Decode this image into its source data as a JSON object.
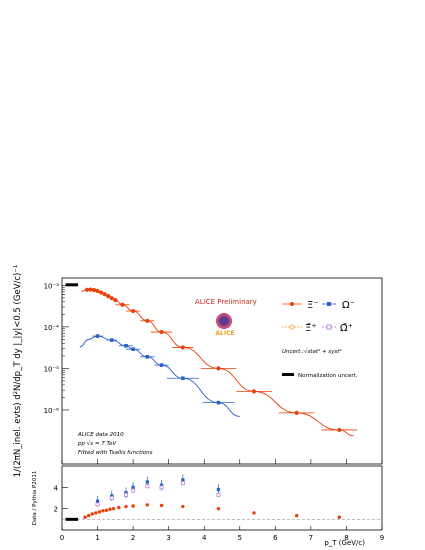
{
  "chart_data": [
    {
      "type": "scatter",
      "panel": "spectra",
      "y_scale": "log",
      "xlim": [
        0,
        9
      ],
      "ylim": [
        5e-08,
        0.0015
      ],
      "ylabel": "1/(2πN_inel. evts) d²N/dp_T dy |_|y|<0.5 (GeV/c)⁻¹",
      "y_tick_labels": [
        "10⁻³",
        "10⁻⁴",
        "10⁻⁵",
        "10⁻⁶"
      ],
      "legend": {
        "title": "ALICE Preliminary",
        "entries": [
          "Ξ⁻",
          "Ω⁻",
          "Ξ̄⁺",
          "Ω̄⁺"
        ],
        "uncert_note": "Uncert.:√stat² + syst²",
        "norm_note": "Normalization uncert."
      },
      "annotation": [
        "ALICE data 2010",
        "pp √s = 7 TeV",
        "Fitted with Tsallis functions"
      ],
      "logo_text": "ALICE",
      "series": [
        {
          "name": "Ξ⁻",
          "color": "#e8410a",
          "x": [
            0.7,
            0.8,
            0.9,
            1.0,
            1.1,
            1.2,
            1.3,
            1.4,
            1.5,
            1.7,
            2.0,
            2.4,
            2.8,
            3.4,
            4.4,
            5.4,
            6.6,
            7.8
          ],
          "y": [
            0.00078,
            0.00079,
            0.00077,
            0.00073,
            0.00067,
            0.00061,
            0.00055,
            0.00049,
            0.00044,
            0.00034,
            0.00024,
            0.00014,
            7.5e-05,
            3.2e-05,
            1e-05,
            2.8e-06,
            8.5e-07,
            3.3e-07
          ]
        },
        {
          "name": "Ω⁻",
          "color": "#2a62c8",
          "x": [
            1.0,
            1.4,
            1.8,
            2.0,
            2.4,
            2.8,
            3.4,
            4.4
          ],
          "y": [
            6e-05,
            4.8e-05,
            3.5e-05,
            2.9e-05,
            1.9e-05,
            1.2e-05,
            5.8e-06,
            1.5e-06
          ]
        }
      ]
    },
    {
      "type": "scatter",
      "panel": "ratio",
      "xlim": [
        0,
        9
      ],
      "ylim": [
        0,
        6
      ],
      "xlabel": "p_T (GeV/c)",
      "ylabel": "Data / Pythia P2011",
      "x_tick_labels": [
        "0",
        "1",
        "2",
        "3",
        "4",
        "5",
        "6",
        "7",
        "8",
        "9"
      ],
      "y_tick_labels": [
        "2",
        "4"
      ],
      "series": [
        {
          "name": "Ξ⁻",
          "x": [
            0.65,
            0.75,
            0.85,
            0.95,
            1.05,
            1.15,
            1.25,
            1.35,
            1.45,
            1.6,
            1.8,
            2.0,
            2.4,
            2.8,
            3.4,
            4.4,
            5.4,
            6.6,
            7.8
          ],
          "y": [
            1.2,
            1.35,
            1.5,
            1.6,
            1.7,
            1.8,
            1.85,
            1.95,
            2.0,
            2.1,
            2.2,
            2.25,
            2.35,
            2.3,
            2.2,
            2.0,
            1.6,
            1.35,
            1.2
          ]
        },
        {
          "name": "Ω⁻",
          "x": [
            1.0,
            1.4,
            1.8,
            2.0,
            2.4,
            2.8,
            3.4,
            4.4
          ],
          "y": [
            2.7,
            3.2,
            3.5,
            4.0,
            4.5,
            4.2,
            4.7,
            3.8
          ]
        },
        {
          "name": "Ω̄⁺",
          "x": [
            1.0,
            1.4,
            1.8,
            2.0,
            2.4,
            2.8,
            3.4,
            4.4
          ],
          "y": [
            2.4,
            3.0,
            3.3,
            3.7,
            4.1,
            4.0,
            4.4,
            3.3
          ]
        }
      ]
    }
  ]
}
